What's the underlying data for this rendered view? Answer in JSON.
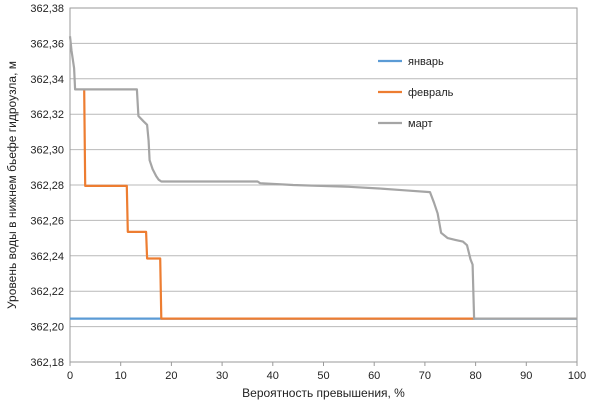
{
  "chart_data": {
    "type": "line",
    "xlabel": "Вероятность превышения, %",
    "ylabel": "Уровень воды в нижнем бьефе гидроузла, м",
    "xlim": [
      0,
      100
    ],
    "ylim": [
      362.18,
      362.38
    ],
    "x_ticks": [
      "0",
      "10",
      "20",
      "30",
      "40",
      "50",
      "60",
      "70",
      "80",
      "90",
      "100"
    ],
    "y_ticks": [
      "362,38",
      "362,36",
      "362,34",
      "362,32",
      "362,30",
      "362,28",
      "362,26",
      "362,24",
      "362,22",
      "362,20",
      "362,18"
    ],
    "grid": "horizontal",
    "legend_position": "right-top",
    "series": [
      {
        "name": "январь",
        "color": "#5b9bd5",
        "points": [
          [
            0,
            362.2045
          ],
          [
            18,
            362.2045
          ],
          [
            100,
            362.2045
          ]
        ]
      },
      {
        "name": "февраль",
        "color": "#ed7d31",
        "points": [
          [
            2.8,
            362.3335
          ],
          [
            3.0,
            362.2795
          ],
          [
            11.2,
            362.2795
          ],
          [
            11.4,
            362.2535
          ],
          [
            15.0,
            362.2535
          ],
          [
            15.2,
            362.2385
          ],
          [
            17.8,
            362.2385
          ],
          [
            18.0,
            362.2045
          ],
          [
            79.8,
            362.2045
          ]
        ]
      },
      {
        "name": "март",
        "color": "#a5a5a5",
        "points": [
          [
            0,
            362.364
          ],
          [
            0.3,
            362.356
          ],
          [
            0.8,
            362.346
          ],
          [
            1.0,
            362.334
          ],
          [
            13.2,
            362.334
          ],
          [
            13.5,
            362.319
          ],
          [
            14.5,
            362.316
          ],
          [
            15.2,
            362.314
          ],
          [
            15.5,
            362.305
          ],
          [
            15.7,
            362.294
          ],
          [
            16.3,
            362.289
          ],
          [
            17.0,
            362.285
          ],
          [
            17.5,
            362.283
          ],
          [
            18.0,
            362.282
          ],
          [
            37.0,
            362.282
          ],
          [
            37.5,
            362.281
          ],
          [
            44.0,
            362.28
          ],
          [
            55.0,
            362.279
          ],
          [
            61.0,
            362.278
          ],
          [
            66.0,
            362.277
          ],
          [
            71.0,
            362.276
          ],
          [
            71.8,
            362.27
          ],
          [
            72.5,
            362.264
          ],
          [
            73.2,
            362.253
          ],
          [
            74.5,
            362.25
          ],
          [
            76.0,
            362.249
          ],
          [
            77.5,
            362.248
          ],
          [
            78.3,
            362.246
          ],
          [
            79.0,
            362.238
          ],
          [
            79.4,
            362.235
          ],
          [
            79.7,
            362.2045
          ],
          [
            100,
            362.2045
          ]
        ]
      }
    ]
  }
}
